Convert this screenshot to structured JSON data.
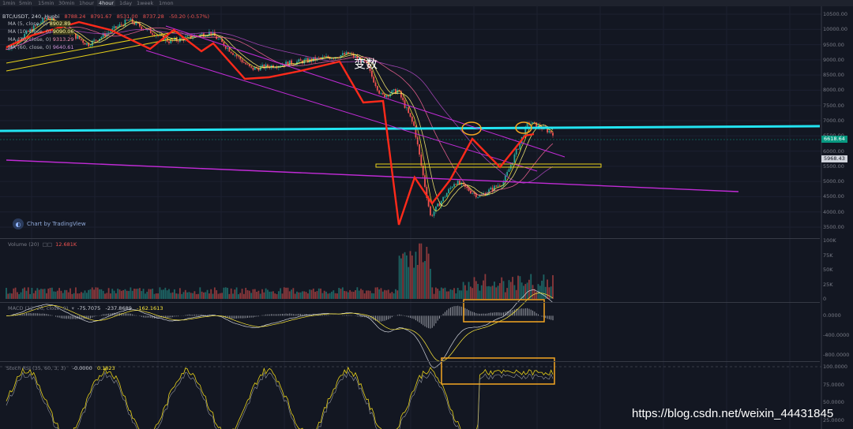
{
  "toolbar": {
    "timeframes": [
      "1min",
      "5min",
      "15min",
      "30min",
      "1hour",
      "4hour",
      "1day",
      "1week",
      "1mon"
    ],
    "active": "4hour"
  },
  "main_legend": {
    "symbol": "BTC/USDT, 240, Huobi",
    "open": "8788.24",
    "high": "8791.67",
    "low": "8531.00",
    "close": "8737.28",
    "change": "-50.20 (-0.57%)"
  },
  "ma_indicators": [
    {
      "label": "MA (5, close, 0)",
      "value": "8902.89",
      "color": "#ffeb3b"
    },
    {
      "label": "MA (10, close, 0)",
      "value": "9090.06",
      "color": "#ffeb3b"
    },
    {
      "label": "MA (30, close, 0)",
      "value": "9313.29",
      "color": "#f06292"
    },
    {
      "label": "MA (60, close, 0)",
      "value": "9640.61",
      "color": "#ab47bc"
    }
  ],
  "price_axis_labels": [
    "10500.00",
    "10000.00",
    "9500.00",
    "9000.00",
    "8500.00",
    "8000.00",
    "7500.00",
    "7000.00",
    "6500.00",
    "6000.00",
    "5500.00",
    "5000.00",
    "4500.00",
    "4000.00",
    "3500.00"
  ],
  "price_tags": {
    "current": "6618.64",
    "level": "5968.43"
  },
  "annotation": "变数",
  "tradingview_label": "Chart by TradingView",
  "volume_pane": {
    "legend": "Volume (20)",
    "value": "12.681K",
    "axis_labels": [
      "100K",
      "75K",
      "50K",
      "25K",
      "0"
    ]
  },
  "macd_pane": {
    "legend": "MACD (12, 26, close, 9)",
    "values": [
      "-75.7075",
      "-237.8689",
      "-162.1613"
    ],
    "axis_labels": [
      "0.0000",
      "-400.0000",
      "-800.0000"
    ]
  },
  "stoch_pane": {
    "legend": "Stoch RSI (35, 60, 3, 3)",
    "values": [
      "-0.0000",
      "0.1823"
    ],
    "axis_labels": [
      "100.0000",
      "75.0000",
      "50.0000",
      "25.0000"
    ]
  },
  "watermark": "https://blog.csdn.net/weixin_44431845",
  "colors": {
    "background": "#131722",
    "up_candle": "#26a69a",
    "down_candle": "#ef5350",
    "red_zigzag": "#ff2a1a",
    "cyan_line": "#22e4f2",
    "magenta_line": "#c12bd6",
    "yellow_line": "#e8d21a",
    "orange_box": "#f5a623"
  },
  "chart_data": {
    "type": "line",
    "title": "BTC/USDT, 240, Huobi",
    "ylim": [
      3400,
      10700
    ],
    "price_path": {
      "t": [
        0,
        5,
        10,
        15,
        20,
        25,
        30,
        35,
        40,
        42,
        44,
        46,
        48,
        50,
        52,
        55,
        58,
        61,
        64,
        67
      ],
      "close": [
        9350,
        10400,
        9500,
        10300,
        9600,
        9900,
        8700,
        8900,
        9100,
        9200,
        8900,
        7800,
        8000,
        6800,
        3850,
        5000,
        4500,
        5000,
        6950,
        6600
      ]
    },
    "resistance_cyan": {
      "t": [
        0,
        100
      ],
      "y": [
        6900,
        7050
      ]
    },
    "support_level": 5968.43,
    "current_price": 6618.64
  }
}
